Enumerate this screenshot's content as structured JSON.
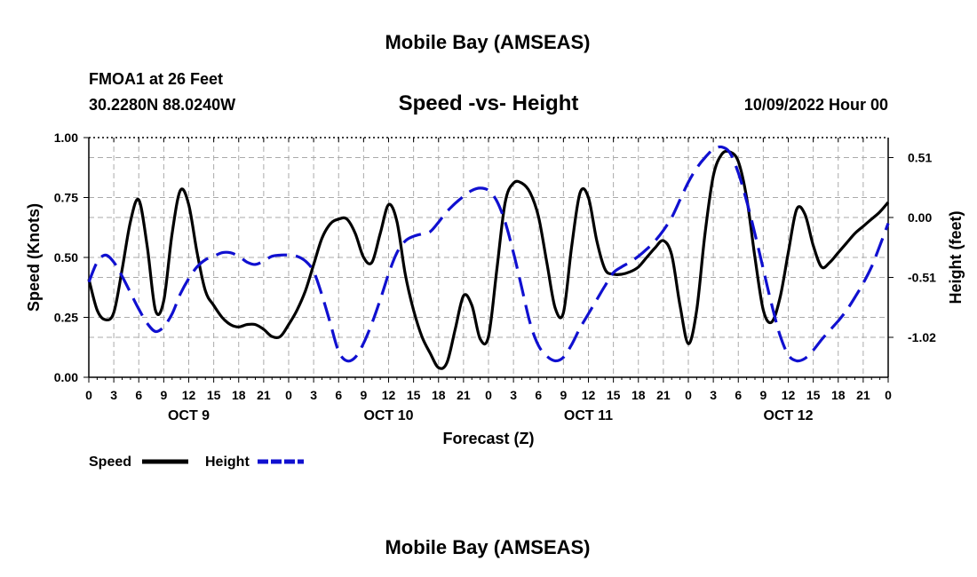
{
  "header": {
    "title": "Mobile Bay (AMSEAS)",
    "station": "FMOA1 at 26 Feet",
    "coords": "30.2280N  88.0240W",
    "subtitle": "Speed -vs- Height",
    "datetime": "10/09/2022 Hour 00"
  },
  "footer": {
    "title": "Mobile Bay (AMSEAS)"
  },
  "legend": {
    "speed_label": "Speed",
    "height_label": "Height"
  },
  "colors": {
    "speed": "#000000",
    "height": "#1010d0",
    "grid": "#aaaaaa"
  },
  "chart_data": {
    "type": "line",
    "title": "Speed -vs- Height",
    "xlabel": "Forecast (Z)",
    "ylabel_left": "Speed (Knots)",
    "ylabel_right": "Height (feet)",
    "x_range": [
      0,
      96
    ],
    "y_left_range": [
      0,
      1
    ],
    "y_right_range": [
      -1.36,
      0.68
    ],
    "y_left_ticks": [
      0,
      0.25,
      0.5,
      0.75,
      1
    ],
    "y_left_tick_labels": [
      "0.00",
      "0.25",
      "0.50",
      "0.75",
      "1.00"
    ],
    "y_right_ticks": [
      0.51,
      0,
      -0.51,
      -1.02
    ],
    "y_right_tick_labels": [
      "0.51",
      "0.00",
      "-0.51",
      "-1.02"
    ],
    "x_tick_labels": [
      "0",
      "3",
      "6",
      "9",
      "12",
      "15",
      "18",
      "21",
      "0",
      "3",
      "6",
      "9",
      "12",
      "15",
      "18",
      "21",
      "0",
      "3",
      "6",
      "9",
      "12",
      "15",
      "18",
      "21",
      "0",
      "3",
      "6",
      "9",
      "12",
      "15",
      "18",
      "21",
      "0"
    ],
    "day_labels": [
      {
        "label": "OCT 9",
        "x": 12
      },
      {
        "label": "OCT 10",
        "x": 36
      },
      {
        "label": "OCT 11",
        "x": 60
      },
      {
        "label": "OCT 12",
        "x": 84
      }
    ],
    "grid": true,
    "series": [
      {
        "name": "Speed",
        "axis": "left",
        "style": "solid",
        "x": [
          0,
          1,
          2,
          3,
          4,
          5,
          6,
          7,
          8,
          9,
          10,
          11,
          12,
          13,
          14,
          15,
          16,
          17,
          18,
          19,
          20,
          21,
          22,
          23,
          24,
          25,
          26,
          27,
          28,
          29,
          30,
          31,
          32,
          33,
          34,
          35,
          36,
          37,
          38,
          39,
          40,
          41,
          42,
          43,
          44,
          45,
          46,
          47,
          48,
          49,
          50,
          51,
          52,
          53,
          54,
          55,
          56,
          57,
          58,
          59,
          60,
          61,
          62,
          63,
          64,
          65,
          66,
          67,
          68,
          69,
          70,
          71,
          72,
          73,
          74,
          75,
          76,
          77,
          78,
          79,
          80,
          81,
          82,
          83,
          84,
          85,
          86,
          87,
          88,
          89,
          90,
          91,
          92,
          93,
          94,
          95,
          96
        ],
        "values": [
          0.41,
          0.28,
          0.24,
          0.27,
          0.45,
          0.65,
          0.74,
          0.55,
          0.28,
          0.32,
          0.6,
          0.78,
          0.72,
          0.52,
          0.36,
          0.3,
          0.25,
          0.22,
          0.21,
          0.22,
          0.22,
          0.2,
          0.17,
          0.17,
          0.22,
          0.28,
          0.36,
          0.47,
          0.58,
          0.64,
          0.66,
          0.66,
          0.6,
          0.5,
          0.48,
          0.6,
          0.72,
          0.65,
          0.43,
          0.28,
          0.17,
          0.1,
          0.04,
          0.06,
          0.2,
          0.34,
          0.3,
          0.16,
          0.17,
          0.45,
          0.73,
          0.81,
          0.81,
          0.77,
          0.67,
          0.48,
          0.29,
          0.27,
          0.55,
          0.77,
          0.75,
          0.57,
          0.45,
          0.43,
          0.43,
          0.44,
          0.46,
          0.5,
          0.54,
          0.57,
          0.51,
          0.3,
          0.14,
          0.28,
          0.6,
          0.84,
          0.93,
          0.94,
          0.9,
          0.75,
          0.5,
          0.28,
          0.23,
          0.33,
          0.52,
          0.7,
          0.68,
          0.55,
          0.46,
          0.48,
          0.52,
          0.56,
          0.6,
          0.63,
          0.66,
          0.69,
          0.73
        ]
      },
      {
        "name": "Height",
        "axis": "right",
        "style": "dashed",
        "x": [
          0,
          1,
          2,
          3,
          4,
          5,
          6,
          7,
          8,
          9,
          10,
          11,
          12,
          13,
          14,
          15,
          16,
          17,
          18,
          19,
          20,
          21,
          22,
          23,
          24,
          25,
          26,
          27,
          28,
          29,
          30,
          31,
          32,
          33,
          34,
          35,
          36,
          37,
          38,
          39,
          40,
          41,
          42,
          43,
          44,
          45,
          46,
          47,
          48,
          49,
          50,
          51,
          52,
          53,
          54,
          55,
          56,
          57,
          58,
          59,
          60,
          61,
          62,
          63,
          64,
          65,
          66,
          67,
          68,
          69,
          70,
          71,
          72,
          73,
          74,
          75,
          76,
          77,
          78,
          79,
          80,
          81,
          82,
          83,
          84,
          85,
          86,
          87,
          88,
          89,
          90,
          91,
          92,
          93,
          94,
          95,
          96
        ],
        "values": [
          -0.55,
          -0.38,
          -0.32,
          -0.38,
          -0.5,
          -0.64,
          -0.78,
          -0.9,
          -0.97,
          -0.93,
          -0.82,
          -0.65,
          -0.52,
          -0.42,
          -0.36,
          -0.33,
          -0.3,
          -0.3,
          -0.33,
          -0.38,
          -0.4,
          -0.37,
          -0.33,
          -0.32,
          -0.32,
          -0.33,
          -0.37,
          -0.46,
          -0.66,
          -0.9,
          -1.14,
          -1.22,
          -1.19,
          -1.07,
          -0.9,
          -0.7,
          -0.48,
          -0.3,
          -0.2,
          -0.16,
          -0.14,
          -0.12,
          -0.04,
          0.05,
          0.12,
          0.18,
          0.23,
          0.25,
          0.23,
          0.14,
          -0.04,
          -0.3,
          -0.6,
          -0.9,
          -1.09,
          -1.18,
          -1.22,
          -1.19,
          -1.08,
          -0.94,
          -0.82,
          -0.7,
          -0.58,
          -0.47,
          -0.42,
          -0.38,
          -0.33,
          -0.27,
          -0.2,
          -0.11,
          0,
          0.15,
          0.3,
          0.42,
          0.51,
          0.58,
          0.6,
          0.55,
          0.38,
          0.14,
          -0.14,
          -0.44,
          -0.74,
          -1.0,
          -1.17,
          -1.22,
          -1.2,
          -1.13,
          -1.04,
          -0.96,
          -0.88,
          -0.79,
          -0.68,
          -0.56,
          -0.42,
          -0.24,
          -0.05
        ]
      }
    ]
  }
}
